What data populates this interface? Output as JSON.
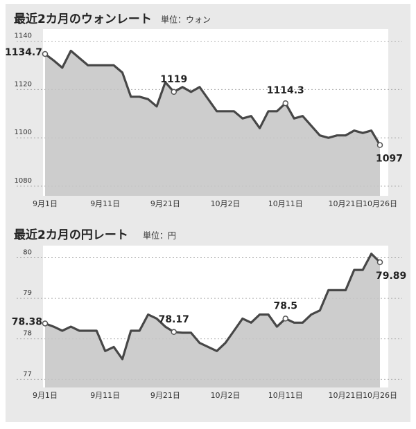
{
  "chart_data": [
    {
      "type": "line",
      "title": "最近2カ月のウォンレート",
      "subtitle": "単位：ウォン",
      "categories": [
        "9月1日",
        null,
        null,
        null,
        null,
        null,
        null,
        "9月11日",
        null,
        null,
        null,
        null,
        null,
        null,
        "9月21日",
        null,
        null,
        null,
        null,
        null,
        null,
        "10月2日",
        null,
        null,
        null,
        null,
        null,
        null,
        "10月11日",
        null,
        null,
        null,
        null,
        null,
        null,
        "10月21日",
        null,
        null,
        null,
        "10月26日"
      ],
      "values": [
        1134.7,
        1132,
        1129,
        1136,
        1133,
        1130,
        1130,
        1130,
        1130,
        1127,
        1117,
        1117,
        1116,
        1113,
        1123,
        1119,
        1121,
        1119,
        1121,
        1116,
        1111,
        1111,
        1111,
        1108,
        1109,
        1104,
        1111,
        1111,
        1114.3,
        1108,
        1109,
        1105,
        1101,
        1100,
        1101,
        1101,
        1103,
        1102,
        1103,
        1097
      ],
      "value_labels": [
        "1134.7",
        null,
        null,
        null,
        null,
        null,
        null,
        null,
        null,
        null,
        null,
        null,
        null,
        null,
        null,
        "1119",
        null,
        null,
        null,
        null,
        null,
        null,
        null,
        null,
        null,
        null,
        null,
        null,
        "1114.3",
        null,
        null,
        null,
        null,
        null,
        null,
        null,
        null,
        null,
        null,
        "1097"
      ],
      "color": "#474747",
      "ylim": [
        1076,
        1145
      ],
      "yticks": [
        1080,
        1100,
        1120,
        1140
      ],
      "grid": true
    },
    {
      "type": "line",
      "title": "最近2カ月の円レート",
      "subtitle": "単位：円",
      "categories": [
        "9月1日",
        null,
        null,
        null,
        null,
        null,
        null,
        "9月11日",
        null,
        null,
        null,
        null,
        null,
        null,
        "9月21日",
        null,
        null,
        null,
        null,
        null,
        null,
        "10月2日",
        null,
        null,
        null,
        null,
        null,
        null,
        "10月11日",
        null,
        null,
        null,
        null,
        null,
        null,
        "10月21日",
        null,
        null,
        null,
        "10月26日"
      ],
      "values": [
        78.38,
        78.3,
        78.2,
        78.3,
        78.2,
        78.2,
        78.2,
        77.7,
        77.8,
        77.5,
        78.2,
        78.2,
        78.6,
        78.5,
        78.3,
        78.17,
        78.15,
        78.15,
        77.9,
        77.8,
        77.7,
        77.9,
        78.2,
        78.5,
        78.4,
        78.6,
        78.6,
        78.3,
        78.5,
        78.4,
        78.4,
        78.6,
        78.7,
        79.2,
        79.2,
        79.2,
        79.7,
        79.7,
        80.1,
        79.89
      ],
      "value_labels": [
        "78.38",
        null,
        null,
        null,
        null,
        null,
        null,
        null,
        null,
        null,
        null,
        null,
        null,
        null,
        null,
        "78.17",
        null,
        null,
        null,
        null,
        null,
        null,
        null,
        null,
        null,
        null,
        null,
        null,
        "78.5",
        null,
        null,
        null,
        null,
        null,
        null,
        null,
        null,
        null,
        null,
        "79.89"
      ],
      "color": "#474747",
      "ylim": [
        76.8,
        80.3
      ],
      "yticks": [
        77,
        78,
        79,
        80
      ],
      "grid": true
    }
  ]
}
